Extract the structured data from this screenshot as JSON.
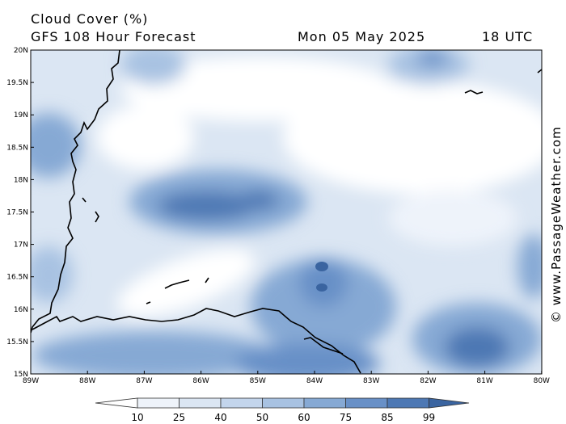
{
  "header": {
    "title": "Cloud Cover (%)",
    "subtitle": "GFS 108 Hour Forecast",
    "date": "Mon 05 May 2025",
    "time": "18 UTC"
  },
  "credit": "© www.PassageWeather.com",
  "axes": {
    "lat_labels": [
      "20N",
      "19.5N",
      "19N",
      "18.5N",
      "18N",
      "17.5N",
      "17N",
      "16.5N",
      "16N",
      "15.5N",
      "15N"
    ],
    "lon_labels": [
      "89W",
      "88W",
      "87W",
      "86W",
      "85W",
      "84W",
      "83W",
      "82W",
      "81W",
      "80W"
    ]
  },
  "legend": {
    "labels": [
      "10",
      "25",
      "40",
      "50",
      "60",
      "75",
      "85",
      "99"
    ],
    "colors": [
      "#ffffff",
      "#eef3fa",
      "#dbe6f3",
      "#c3d5ec",
      "#a8c2e2",
      "#86a9d4",
      "#6890c7",
      "#4d78b4",
      "#3a64a0"
    ]
  }
}
